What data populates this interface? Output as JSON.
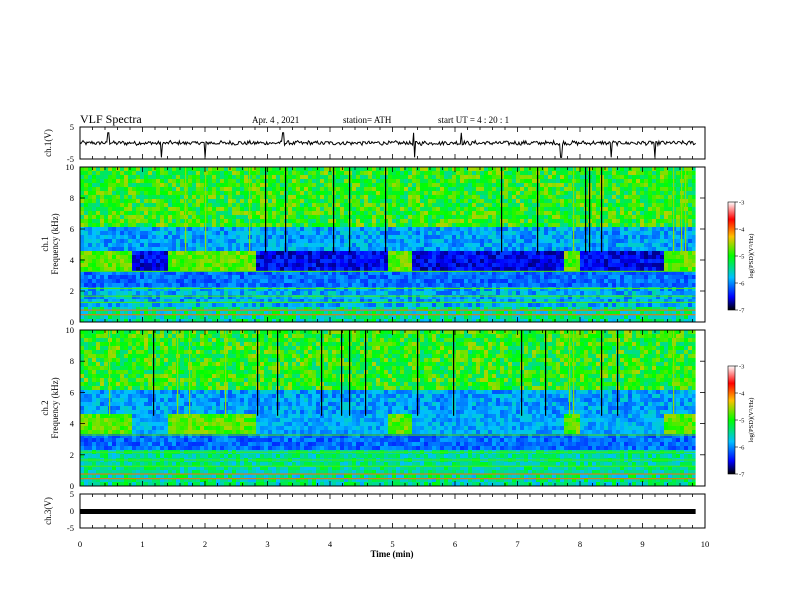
{
  "header": {
    "title": "VLF Spectra",
    "date": "Apr. 4  , 2021",
    "station": "station= ATH",
    "start": "start  UT =   4 : 20 : 1"
  },
  "chart_data": [
    {
      "type": "line",
      "id": "ch1-waveform",
      "ylabel": "ch.1(V)",
      "ylim": [
        -5,
        5
      ],
      "yticks": [
        "5",
        "-5"
      ],
      "xlim": [
        0,
        10
      ],
      "color": "#000000",
      "baseline": 0,
      "spike_times_min": [
        0.45,
        1.3,
        2.0,
        3.25,
        5.35,
        6.1,
        7.7,
        8.5,
        9.2
      ]
    },
    {
      "type": "heatmap",
      "id": "ch1-spectrogram",
      "ylabel_top": "ch.1",
      "ylabel": "Frequency  (kHz)",
      "ylim": [
        0,
        10
      ],
      "yticks": [
        "0",
        "2",
        "4",
        "6",
        "8",
        "10"
      ],
      "xlim": [
        0,
        10
      ],
      "colorbar": {
        "label": "log(PSD)(V²/Hz)",
        "ticks": [
          "-3",
          "-4",
          "-5",
          "-6",
          "-7"
        ],
        "range": [
          -7,
          -3
        ],
        "colors": [
          "#ffffff",
          "#ff0000",
          "#ffc000",
          "#00ff00",
          "#00c0ff",
          "#0000ff",
          "#000000"
        ]
      },
      "quiet_intervals_min": [
        [
          0.8,
          1.35
        ],
        [
          2.8,
          4.9
        ],
        [
          5.25,
          7.7
        ],
        [
          8.0,
          9.3
        ]
      ]
    },
    {
      "type": "heatmap",
      "id": "ch2-spectrogram",
      "ylabel_top": "ch.2",
      "ylabel": "Frequency  (kHz)",
      "ylim": [
        0,
        10
      ],
      "yticks": [
        "0",
        "2",
        "4",
        "6",
        "8",
        "10"
      ],
      "xlim": [
        0,
        10
      ],
      "colorbar": {
        "label": "log(PSD)(V²/Hz)",
        "ticks": [
          "-3",
          "-4",
          "-5",
          "-6",
          "-7"
        ],
        "range": [
          -7,
          -3
        ],
        "colors": [
          "#ffffff",
          "#ff0000",
          "#ffc000",
          "#00ff00",
          "#00c0ff",
          "#0000ff",
          "#000000"
        ]
      },
      "quiet_intervals_min": [
        [
          0.8,
          1.35
        ],
        [
          2.8,
          4.9
        ],
        [
          5.25,
          7.7
        ],
        [
          8.0,
          9.3
        ]
      ]
    },
    {
      "type": "line",
      "id": "ch3-waveform",
      "ylabel": "ch.3(V)",
      "ylim": [
        -5,
        5
      ],
      "yticks": [
        "5",
        "0",
        "-5"
      ],
      "xlim": [
        0,
        10
      ],
      "xlabel": "Time  (min)",
      "xticks": [
        "0",
        "1",
        "2",
        "3",
        "4",
        "5",
        "6",
        "7",
        "8",
        "9",
        "10"
      ],
      "color": "#000000",
      "values": [
        [
          0,
          0
        ],
        [
          9.85,
          0
        ]
      ]
    }
  ]
}
